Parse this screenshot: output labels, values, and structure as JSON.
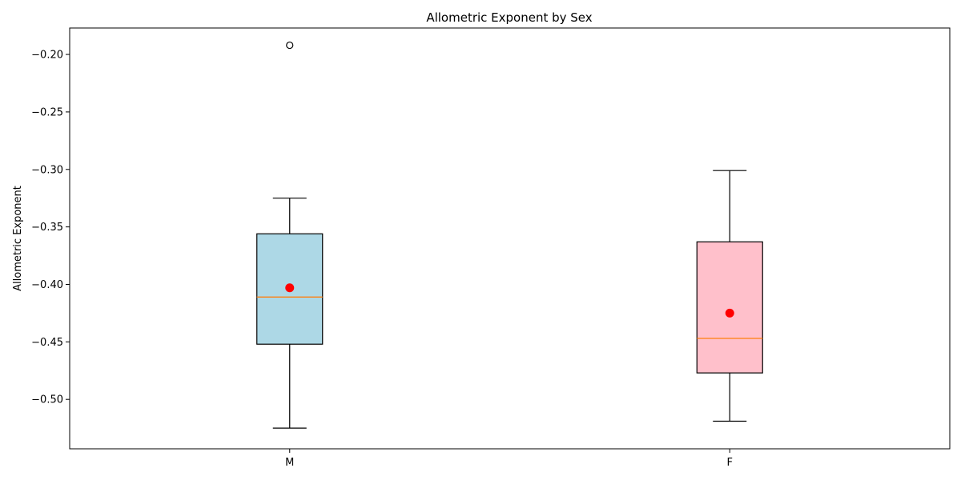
{
  "chart_data": {
    "type": "box",
    "title": "Allometric Exponent by Sex",
    "xlabel": "",
    "ylabel": "Allometric Exponent",
    "ylim": [
      -0.543,
      -0.177
    ],
    "yticks": [
      -0.5,
      -0.45,
      -0.4,
      -0.35,
      -0.3,
      -0.25,
      -0.2
    ],
    "ytick_labels": [
      "−0.50",
      "−0.45",
      "−0.40",
      "−0.35",
      "−0.30",
      "−0.25",
      "−0.20"
    ],
    "grid": false,
    "categories": [
      "M",
      "F"
    ],
    "boxes": [
      {
        "category": "M",
        "whisker_low": -0.525,
        "q1": -0.452,
        "median": -0.411,
        "q3": -0.356,
        "whisker_high": -0.325,
        "mean": -0.403,
        "outliers": [
          -0.192
        ],
        "fill": "#add8e6"
      },
      {
        "category": "F",
        "whisker_low": -0.519,
        "q1": -0.477,
        "median": -0.447,
        "q3": -0.363,
        "whisker_high": -0.301,
        "mean": -0.425,
        "outliers": [],
        "fill": "#ffc0cb"
      }
    ],
    "colors": {
      "median": "#ff7f0e",
      "mean": "#ff0000",
      "outline": "#000000"
    }
  }
}
